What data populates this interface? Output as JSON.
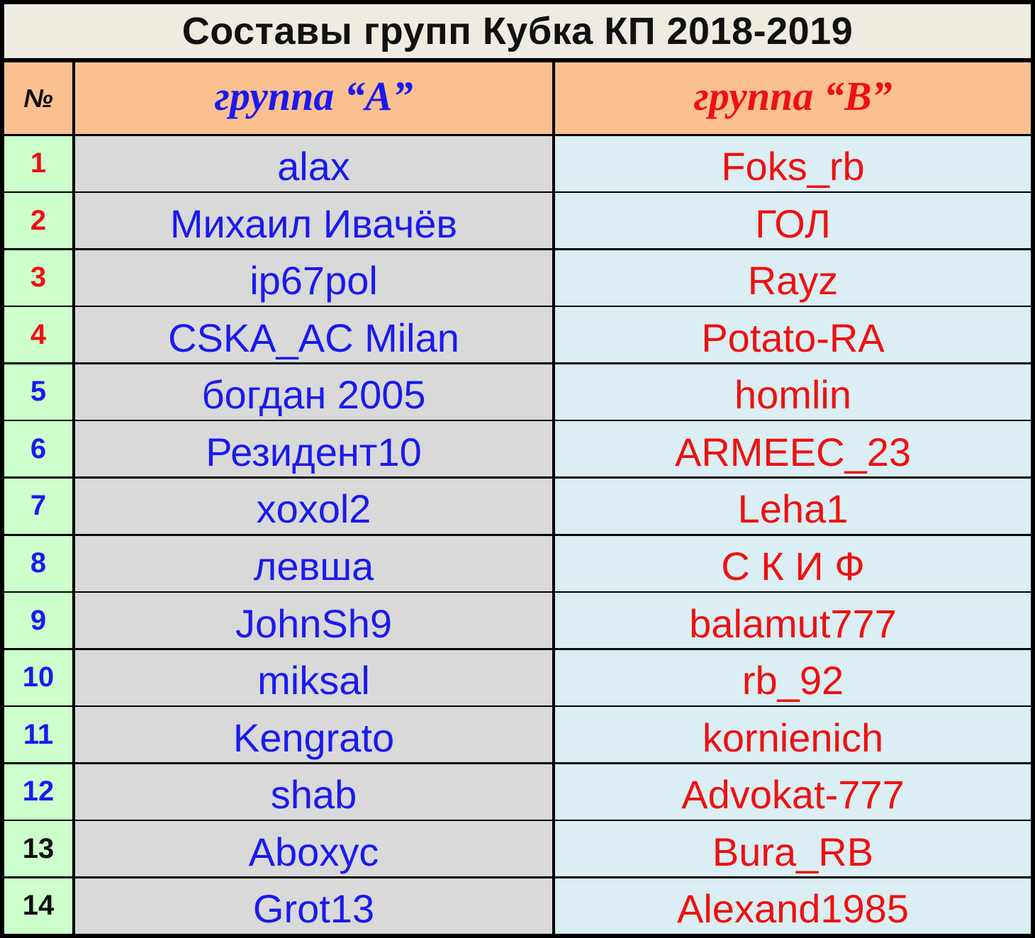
{
  "title": "Составы групп Кубка КП 2018-2019",
  "colors": {
    "title_bg": "#EEECE1",
    "header_bg": "#FAC090",
    "number_bg": "#CCFFCC",
    "group_a_bg": "#D9D9D9",
    "group_b_bg": "#DAEEF3",
    "group_a_text": "#1A1AEE",
    "group_b_text": "#EE1111",
    "border": "#000000"
  },
  "header": {
    "number": "№",
    "group_a": "группа “A”",
    "group_b": "группа “B”"
  },
  "rows": [
    {
      "num": "1",
      "num_color": "#EE1111",
      "a": "alax",
      "b": "Foks_rb"
    },
    {
      "num": "2",
      "num_color": "#EE1111",
      "a": "Михаил Ивачёв",
      "b": "ГОЛ"
    },
    {
      "num": "3",
      "num_color": "#EE1111",
      "a": "ip67pol",
      "b": "Rayz"
    },
    {
      "num": "4",
      "num_color": "#EE1111",
      "a": "CSKA_AC Milan",
      "b": "Potato-RA"
    },
    {
      "num": "5",
      "num_color": "#1A1AEE",
      "a": "богдан 2005",
      "b": "homlin"
    },
    {
      "num": "6",
      "num_color": "#1A1AEE",
      "a": "Резидент10",
      "b": "ARMEEC_23"
    },
    {
      "num": "7",
      "num_color": "#1A1AEE",
      "a": "xoxol2",
      "b": "Leha1"
    },
    {
      "num": "8",
      "num_color": "#1A1AEE",
      "a": "левша",
      "b": "С К И Ф"
    },
    {
      "num": "9",
      "num_color": "#1A1AEE",
      "a": "JohnSh9",
      "b": "balamut777"
    },
    {
      "num": "10",
      "num_color": "#1A1AEE",
      "a": "miksal",
      "b": "rb_92"
    },
    {
      "num": "11",
      "num_color": "#1A1AEE",
      "a": "Kengrato",
      "b": "kornienich"
    },
    {
      "num": "12",
      "num_color": "#1A1AEE",
      "a": "shab",
      "b": "Advokat-777"
    },
    {
      "num": "13",
      "num_color": "#111111",
      "a": "Aboxyc",
      "b": "Bura_RB"
    },
    {
      "num": "14",
      "num_color": "#111111",
      "a": "Grot13",
      "b": "Alexand1985"
    }
  ]
}
